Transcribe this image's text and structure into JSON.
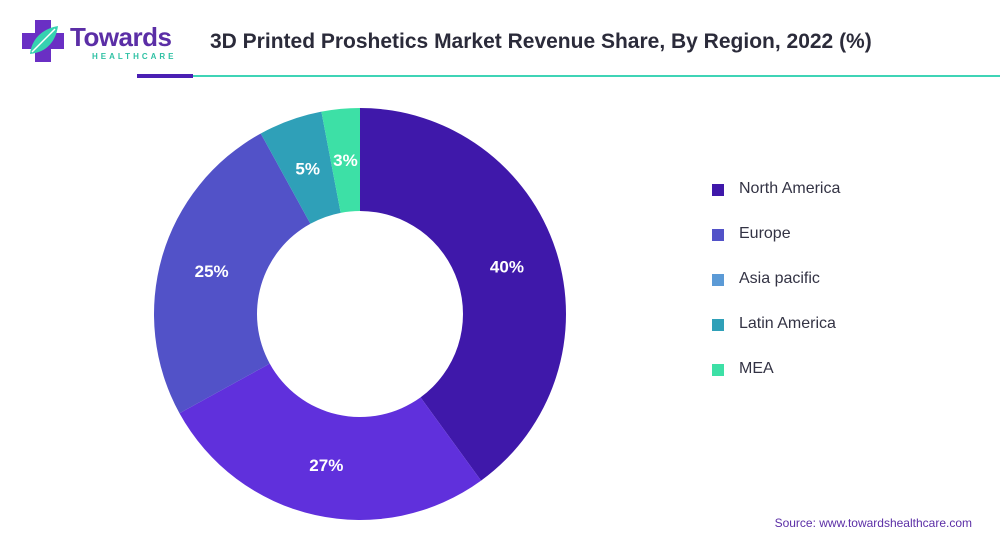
{
  "brand": {
    "name": "Towards",
    "tagline": "HEALTHCARE"
  },
  "title": "3D Printed Proshetics Market Revenue Share, By Region, 2022 (%)",
  "source": "Source: www.towardshealthcare.com",
  "colors": {
    "North America": "#3f18aa",
    "Europe": "#5252c8",
    "Asia pacific": "#5b9ad6",
    "Latin America": "#2fa0b8",
    "MEA": "#3de0a6",
    "Slice27": "#6030dc"
  },
  "chart_data": {
    "type": "pie",
    "variant": "donut",
    "title": "3D Printed Proshetics Market Revenue Share, By Region, 2022 (%)",
    "legend": [
      "North America",
      "Europe",
      "Asia pacific",
      "Latin America",
      "MEA"
    ],
    "legend_position": "right",
    "slices": [
      {
        "label": "40%",
        "value": 40,
        "color": "#3f18aa"
      },
      {
        "label": "27%",
        "value": 27,
        "color": "#6030dc"
      },
      {
        "label": "25%",
        "value": 25,
        "color": "#5252c8"
      },
      {
        "label": "5%",
        "value": 5,
        "color": "#2fa0b8"
      },
      {
        "label": "3%",
        "value": 3,
        "color": "#3de0a6"
      }
    ]
  }
}
